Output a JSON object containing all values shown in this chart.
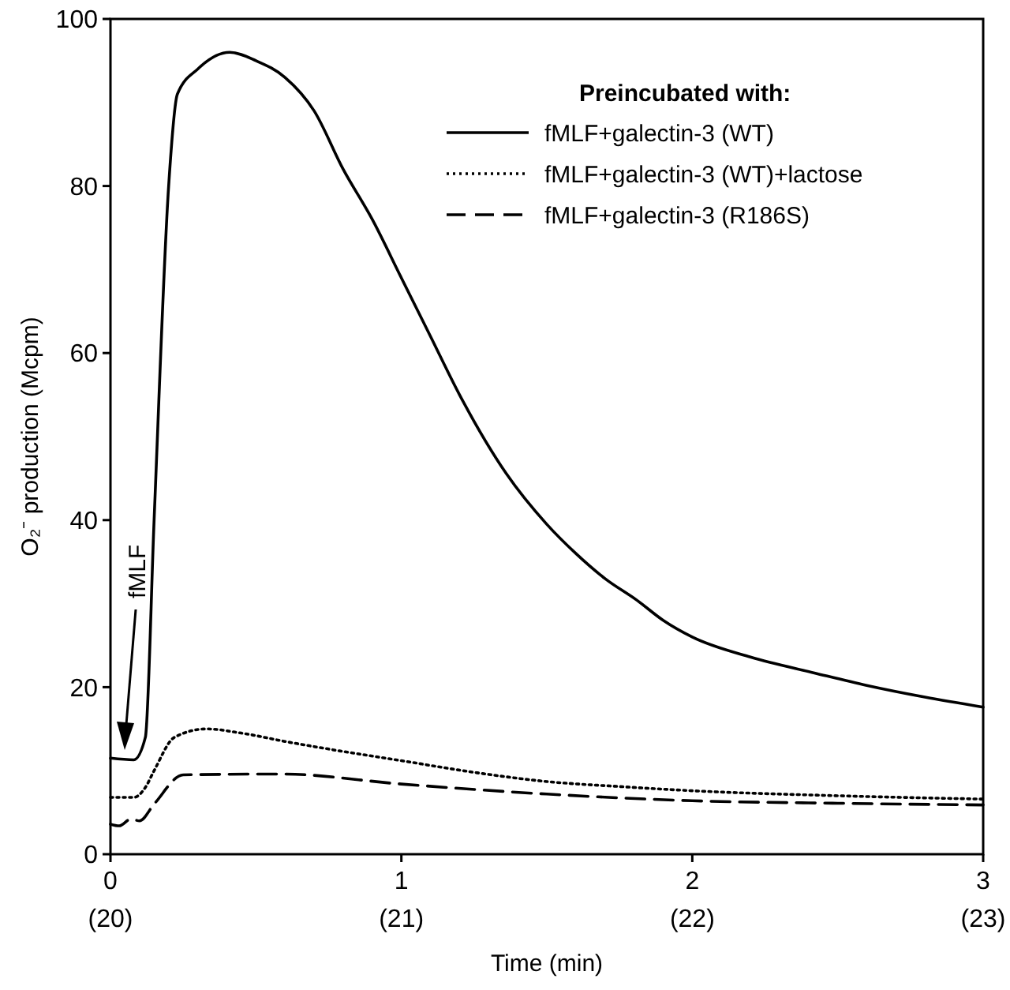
{
  "chart_data": {
    "type": "line",
    "xlabel": "Time (min)",
    "ylabel": "O₂⁻ production (Mcpm)",
    "legend_title": "Preincubated with:",
    "legend": "top right",
    "grid": false,
    "xlim": [
      0,
      3
    ],
    "ylim": [
      0,
      100
    ],
    "xticks": [
      0,
      1,
      2,
      3
    ],
    "x2lim": [
      20,
      23
    ],
    "x2ticks": [
      {
        "value": 20,
        "label": "(20)"
      },
      {
        "value": 21,
        "label": "(21)"
      },
      {
        "value": 22,
        "label": "(22)"
      },
      {
        "value": 23,
        "label": "(23)"
      }
    ],
    "yticks": [
      0,
      20,
      40,
      60,
      80,
      100
    ],
    "annotations": [
      "fMLF"
    ],
    "series": [
      {
        "name": "fMLF+galectin-3 (WT)",
        "color": "#000000",
        "line_style": "solid",
        "x": [
          0,
          0.08,
          0.12,
          0.15,
          0.2,
          0.23,
          0.3,
          0.41,
          0.5,
          0.6,
          0.7,
          0.8,
          0.9,
          1.0,
          1.1,
          1.2,
          1.36,
          1.5,
          1.6,
          1.7,
          1.81,
          1.9,
          2.0,
          2.2,
          2.42,
          2.6,
          2.8,
          3.0
        ],
        "values": [
          11.5,
          11.3,
          14,
          40,
          80,
          91,
          94,
          96,
          95,
          93,
          89,
          82,
          76,
          69,
          62,
          55,
          45.6,
          39.5,
          36,
          33,
          30.4,
          28,
          26,
          23.6,
          21.7,
          20.2,
          18.8,
          17.6
        ]
      },
      {
        "name": "fMLF+galectin-3 (WT)+lactose",
        "color": "#000000",
        "line_style": "dotted",
        "x": [
          0,
          0.08,
          0.12,
          0.15,
          0.22,
          0.33,
          0.45,
          0.6,
          0.8,
          1.0,
          1.25,
          1.5,
          1.75,
          2.0,
          2.5,
          3.0
        ],
        "values": [
          6.8,
          6.8,
          8,
          10,
          14,
          15,
          14.5,
          13.5,
          12.3,
          11.2,
          9.8,
          8.7,
          8.1,
          7.6,
          7.0,
          6.6
        ]
      },
      {
        "name": "fMLF+galectin-3 (R186S)",
        "color": "#000000",
        "line_style": "dashed",
        "x": [
          0,
          0.03,
          0.07,
          0.1,
          0.15,
          0.25,
          0.59,
          1.0,
          1.5,
          2.0,
          2.5,
          3.0
        ],
        "values": [
          3.6,
          3.4,
          4.2,
          4,
          6,
          9.5,
          9.6,
          8.4,
          7.2,
          6.4,
          6.1,
          5.9
        ]
      }
    ]
  }
}
